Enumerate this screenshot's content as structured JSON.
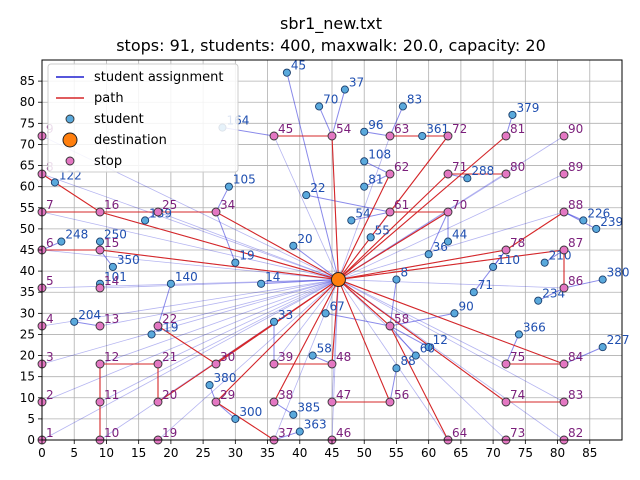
{
  "chart_data": {
    "type": "scatter",
    "title_line1": "sbr1_new.txt",
    "title_line2": "stops: 91, students: 400, maxwalk: 20.0, capacity: 20",
    "xlim": [
      0,
      90
    ],
    "ylim": [
      0,
      90
    ],
    "x_ticks": [
      0,
      5,
      10,
      15,
      20,
      25,
      30,
      35,
      40,
      45,
      50,
      55,
      60,
      65,
      70,
      75,
      80,
      85
    ],
    "y_ticks": [
      0,
      5,
      10,
      15,
      20,
      25,
      30,
      35,
      40,
      45,
      50,
      55,
      60,
      65,
      70,
      75,
      80,
      85
    ],
    "grid": true,
    "legend": {
      "position": "top-left",
      "entries": [
        {
          "label": "student assignment",
          "kind": "line",
          "color": "#1f1fcf"
        },
        {
          "label": "path",
          "kind": "line",
          "color": "#d62728"
        },
        {
          "label": "student",
          "kind": "marker",
          "color": "#5aa9dc"
        },
        {
          "label": "destination",
          "kind": "big-marker",
          "color": "#ff7f0e"
        },
        {
          "label": "stop",
          "kind": "marker",
          "color": "#e377c2"
        }
      ]
    },
    "destination": {
      "x": 46,
      "y": 38
    },
    "stops": [
      {
        "id": "1",
        "x": 0,
        "y": 0
      },
      {
        "id": "2",
        "x": 0,
        "y": 9
      },
      {
        "id": "3",
        "x": 0,
        "y": 18
      },
      {
        "id": "4",
        "x": 0,
        "y": 27
      },
      {
        "id": "5",
        "x": 0,
        "y": 36
      },
      {
        "id": "6",
        "x": 0,
        "y": 45
      },
      {
        "id": "7",
        "x": 0,
        "y": 54
      },
      {
        "id": "8",
        "x": 0,
        "y": 63
      },
      {
        "id": "9",
        "x": 0,
        "y": 72
      },
      {
        "id": "10",
        "x": 9,
        "y": 0
      },
      {
        "id": "11",
        "x": 9,
        "y": 9
      },
      {
        "id": "12",
        "x": 9,
        "y": 18
      },
      {
        "id": "13",
        "x": 9,
        "y": 27
      },
      {
        "id": "14",
        "x": 9,
        "y": 36
      },
      {
        "id": "15",
        "x": 9,
        "y": 45
      },
      {
        "id": "16",
        "x": 9,
        "y": 54
      },
      {
        "id": "19",
        "x": 18,
        "y": 0
      },
      {
        "id": "20",
        "x": 18,
        "y": 9
      },
      {
        "id": "21",
        "x": 18,
        "y": 18
      },
      {
        "id": "22",
        "x": 18,
        "y": 27
      },
      {
        "id": "25",
        "x": 18,
        "y": 54
      },
      {
        "id": "29",
        "x": 27,
        "y": 9
      },
      {
        "id": "30",
        "x": 27,
        "y": 18
      },
      {
        "id": "34",
        "x": 27,
        "y": 54
      },
      {
        "id": "37",
        "x": 36,
        "y": 0
      },
      {
        "id": "38",
        "x": 36,
        "y": 9
      },
      {
        "id": "39",
        "x": 36,
        "y": 18
      },
      {
        "id": "45",
        "x": 36,
        "y": 72
      },
      {
        "id": "46",
        "x": 45,
        "y": 0
      },
      {
        "id": "47",
        "x": 45,
        "y": 9
      },
      {
        "id": "48",
        "x": 45,
        "y": 18
      },
      {
        "id": "54",
        "x": 45,
        "y": 72
      },
      {
        "id": "56",
        "x": 54,
        "y": 9
      },
      {
        "id": "58",
        "x": 54,
        "y": 27
      },
      {
        "id": "61",
        "x": 54,
        "y": 54
      },
      {
        "id": "62",
        "x": 54,
        "y": 63
      },
      {
        "id": "63",
        "x": 54,
        "y": 72
      },
      {
        "id": "64",
        "x": 63,
        "y": 0
      },
      {
        "id": "70",
        "x": 63,
        "y": 54
      },
      {
        "id": "71",
        "x": 63,
        "y": 63
      },
      {
        "id": "72",
        "x": 63,
        "y": 72
      },
      {
        "id": "73",
        "x": 72,
        "y": 0
      },
      {
        "id": "74",
        "x": 72,
        "y": 9
      },
      {
        "id": "75",
        "x": 72,
        "y": 18
      },
      {
        "id": "78",
        "x": 72,
        "y": 45
      },
      {
        "id": "80",
        "x": 72,
        "y": 63
      },
      {
        "id": "81",
        "x": 72,
        "y": 72
      },
      {
        "id": "82",
        "x": 81,
        "y": 0
      },
      {
        "id": "83",
        "x": 81,
        "y": 9
      },
      {
        "id": "84",
        "x": 81,
        "y": 18
      },
      {
        "id": "86",
        "x": 81,
        "y": 36
      },
      {
        "id": "87",
        "x": 81,
        "y": 45
      },
      {
        "id": "88",
        "x": 81,
        "y": 54
      },
      {
        "id": "89",
        "x": 81,
        "y": 63
      },
      {
        "id": "90",
        "x": 81,
        "y": 72
      }
    ],
    "paths": [
      [
        {
          "x": 9,
          "y": 0
        },
        {
          "x": 9,
          "y": 9
        },
        {
          "x": 9,
          "y": 18
        },
        {
          "x": 18,
          "y": 18
        },
        {
          "x": 18,
          "y": 9
        },
        {
          "x": 46,
          "y": 38
        }
      ],
      [
        {
          "x": 0,
          "y": 54
        },
        {
          "x": 18,
          "y": 54
        },
        {
          "x": 27,
          "y": 54
        },
        {
          "x": 46,
          "y": 38
        }
      ],
      [
        {
          "x": 0,
          "y": 63
        },
        {
          "x": 9,
          "y": 54
        },
        {
          "x": 46,
          "y": 38
        }
      ],
      [
        {
          "x": 0,
          "y": 45
        },
        {
          "x": 9,
          "y": 45
        },
        {
          "x": 46,
          "y": 38
        }
      ],
      [
        {
          "x": 18,
          "y": 27
        },
        {
          "x": 27,
          "y": 18
        },
        {
          "x": 46,
          "y": 38
        }
      ],
      [
        {
          "x": 36,
          "y": 72
        },
        {
          "x": 45,
          "y": 72
        },
        {
          "x": 46,
          "y": 38
        }
      ],
      [
        {
          "x": 54,
          "y": 72
        },
        {
          "x": 63,
          "y": 72
        },
        {
          "x": 46,
          "y": 38
        }
      ],
      [
        {
          "x": 72,
          "y": 63
        },
        {
          "x": 63,
          "y": 63
        },
        {
          "x": 46,
          "y": 38
        }
      ],
      [
        {
          "x": 81,
          "y": 54
        },
        {
          "x": 72,
          "y": 45
        },
        {
          "x": 46,
          "y": 38
        }
      ],
      [
        {
          "x": 81,
          "y": 9
        },
        {
          "x": 72,
          "y": 9
        },
        {
          "x": 46,
          "y": 38
        }
      ],
      [
        {
          "x": 72,
          "y": 18
        },
        {
          "x": 81,
          "y": 18
        },
        {
          "x": 46,
          "y": 38
        }
      ],
      [
        {
          "x": 45,
          "y": 9
        },
        {
          "x": 54,
          "y": 9
        },
        {
          "x": 46,
          "y": 38
        }
      ],
      [
        {
          "x": 36,
          "y": 18
        },
        {
          "x": 45,
          "y": 18
        },
        {
          "x": 46,
          "y": 38
        }
      ],
      [
        {
          "x": 63,
          "y": 0
        },
        {
          "x": 54,
          "y": 27
        },
        {
          "x": 46,
          "y": 38
        }
      ],
      [
        {
          "x": 36,
          "y": 0
        },
        {
          "x": 27,
          "y": 9
        },
        {
          "x": 46,
          "y": 38
        }
      ],
      [
        {
          "x": 36,
          "y": 9
        },
        {
          "x": 46,
          "y": 38
        }
      ],
      [
        {
          "x": 54,
          "y": 54
        },
        {
          "x": 63,
          "y": 54
        },
        {
          "x": 46,
          "y": 38
        }
      ],
      [
        {
          "x": 81,
          "y": 36
        },
        {
          "x": 81,
          "y": 45
        },
        {
          "x": 46,
          "y": 38
        }
      ],
      [
        {
          "x": 54,
          "y": 63
        },
        {
          "x": 46,
          "y": 38
        }
      ],
      [
        {
          "x": 72,
          "y": 72
        },
        {
          "x": 46,
          "y": 38
        }
      ]
    ],
    "students": [
      {
        "id": "45",
        "x": 38,
        "y": 87
      },
      {
        "id": "37",
        "x": 47,
        "y": 83
      },
      {
        "id": "70",
        "x": 43,
        "y": 79
      },
      {
        "id": "83",
        "x": 56,
        "y": 79
      },
      {
        "id": "379",
        "x": 73,
        "y": 77
      },
      {
        "id": "164",
        "x": 28,
        "y": 74
      },
      {
        "id": "96",
        "x": 50,
        "y": 73
      },
      {
        "id": "361",
        "x": 59,
        "y": 72
      },
      {
        "id": "108",
        "x": 50,
        "y": 66
      },
      {
        "id": "122",
        "x": 2,
        "y": 61
      },
      {
        "id": "248",
        "x": 3,
        "y": 47
      },
      {
        "id": "250",
        "x": 9,
        "y": 47
      },
      {
        "id": "204",
        "x": 5,
        "y": 28
      },
      {
        "id": "319",
        "x": 17,
        "y": 25
      },
      {
        "id": "380",
        "x": 87,
        "y": 38
      },
      {
        "id": "227",
        "x": 87,
        "y": 22
      },
      {
        "id": "226",
        "x": 84,
        "y": 52
      },
      {
        "id": "239",
        "x": 86,
        "y": 50
      },
      {
        "id": "366",
        "x": 74,
        "y": 25
      },
      {
        "id": "300",
        "x": 30,
        "y": 5
      },
      {
        "id": "363",
        "x": 40,
        "y": 2
      },
      {
        "id": "385",
        "x": 39,
        "y": 6
      },
      {
        "id": "380b",
        "x": 26,
        "y": 13
      },
      {
        "id": "288",
        "x": 66,
        "y": 62
      },
      {
        "id": "105",
        "x": 29,
        "y": 60
      },
      {
        "id": "139",
        "x": 16,
        "y": 52
      },
      {
        "id": "350",
        "x": 11,
        "y": 41
      },
      {
        "id": "234",
        "x": 77,
        "y": 33
      },
      {
        "id": "110",
        "x": 70,
        "y": 41
      },
      {
        "id": "101",
        "x": 9,
        "y": 37
      },
      {
        "id": "14",
        "x": 34,
        "y": 37
      },
      {
        "id": "20",
        "x": 39,
        "y": 46
      },
      {
        "id": "36",
        "x": 60,
        "y": 44
      },
      {
        "id": "8",
        "x": 55,
        "y": 38
      },
      {
        "id": "54",
        "x": 48,
        "y": 52
      },
      {
        "id": "67",
        "x": 44,
        "y": 30
      },
      {
        "id": "90s",
        "x": 64,
        "y": 30
      },
      {
        "id": "12",
        "x": 60,
        "y": 22
      },
      {
        "id": "33",
        "x": 36,
        "y": 28
      },
      {
        "id": "140",
        "x": 20,
        "y": 37
      },
      {
        "id": "88",
        "x": 55,
        "y": 17
      },
      {
        "id": "60",
        "x": 58,
        "y": 20
      },
      {
        "id": "55",
        "x": 51,
        "y": 48
      },
      {
        "id": "22",
        "x": 41,
        "y": 58
      },
      {
        "id": "44",
        "x": 63,
        "y": 47
      },
      {
        "id": "71s",
        "x": 67,
        "y": 35
      },
      {
        "id": "19s",
        "x": 30,
        "y": 42
      },
      {
        "id": "58s",
        "x": 42,
        "y": 20
      },
      {
        "id": "81s",
        "x": 50,
        "y": 60
      },
      {
        "id": "210",
        "x": 78,
        "y": 42
      }
    ]
  }
}
